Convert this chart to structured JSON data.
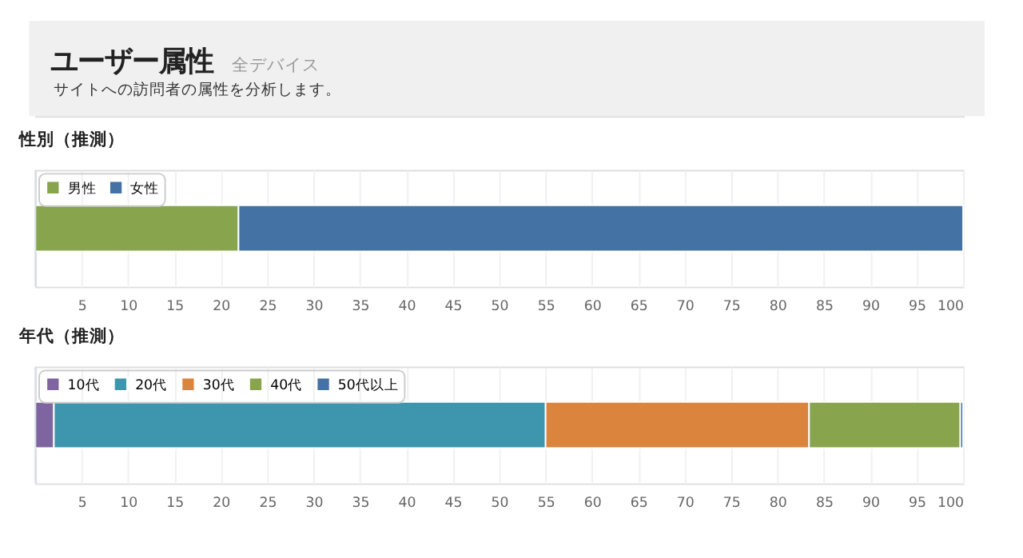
{
  "chart_data": [
    {
      "type": "bar",
      "orientation": "horizontal",
      "stacked": true,
      "title": "性別（推測）",
      "annotations": [
        "ユーザー属性",
        "全デバイス",
        "サイトへの訪問者の属性を分析します。"
      ],
      "categories": [
        null
      ],
      "series": [
        {
          "name": "男性",
          "color": "#88a44c",
          "values": [
            21.9
          ]
        },
        {
          "name": "女性",
          "color": "#4472a4",
          "values": [
            78.1
          ]
        }
      ],
      "xlim": [
        0,
        100
      ],
      "xticks": [
        5,
        10,
        15,
        20,
        25,
        30,
        35,
        40,
        45,
        50,
        55,
        60,
        65,
        70,
        75,
        80,
        85,
        90,
        95,
        100
      ],
      "grid": "x",
      "legend": "top left"
    },
    {
      "type": "bar",
      "orientation": "horizontal",
      "stacked": true,
      "title": "年代（推測）",
      "categories": [
        null
      ],
      "series": [
        {
          "name": "10代",
          "color": "#7f65a0",
          "values": [
            2.0
          ]
        },
        {
          "name": "20代",
          "color": "#3d96ae",
          "values": [
            53.0
          ]
        },
        {
          "name": "30代",
          "color": "#db843d",
          "values": [
            28.4
          ]
        },
        {
          "name": "40代",
          "color": "#88a44c",
          "values": [
            16.3
          ]
        },
        {
          "name": "50代以上",
          "color": "#4472a4",
          "values": [
            0.3
          ]
        }
      ],
      "xlim": [
        0,
        100
      ],
      "xticks": [
        5,
        10,
        15,
        20,
        25,
        30,
        35,
        40,
        45,
        50,
        55,
        60,
        65,
        70,
        75,
        80,
        85,
        90,
        95,
        100
      ],
      "grid": "x",
      "legend": "top left"
    }
  ]
}
